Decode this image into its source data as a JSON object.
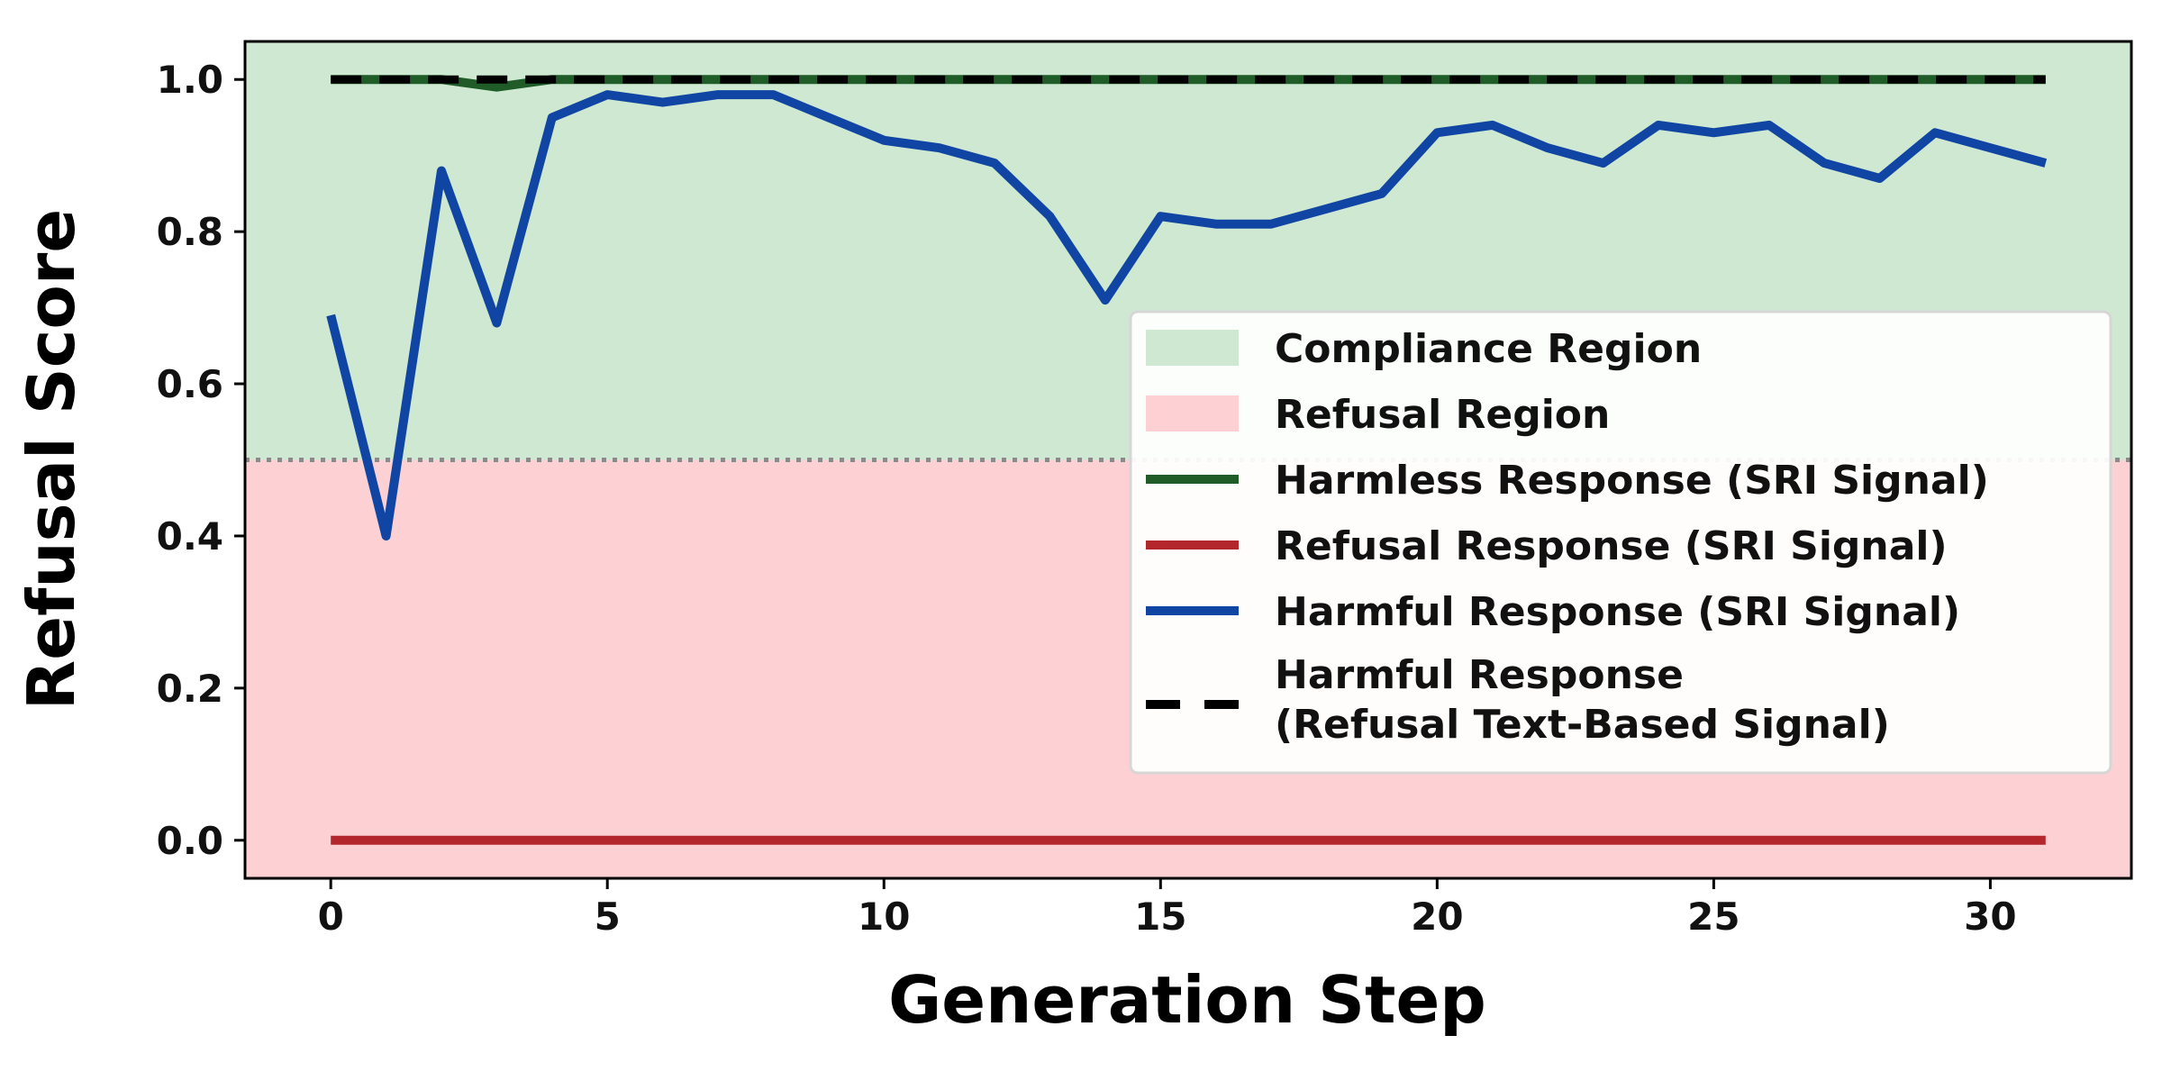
{
  "chart_data": {
    "type": "line",
    "xlabel": "Generation Step",
    "ylabel": "Refusal Score",
    "xlim": [
      -1.55,
      32.55
    ],
    "ylim": [
      -0.05,
      1.05
    ],
    "xticks": [
      0,
      5,
      10,
      15,
      20,
      25,
      30
    ],
    "xtick_labels": [
      "0",
      "5",
      "10",
      "15",
      "20",
      "25",
      "30"
    ],
    "yticks": [
      0.0,
      0.2,
      0.4,
      0.6,
      0.8,
      1.0
    ],
    "ytick_labels": [
      "0.0",
      "0.2",
      "0.4",
      "0.6",
      "0.8",
      "1.0"
    ],
    "threshold": 0.5,
    "grid": false,
    "legend_position": "center-right",
    "regions": [
      {
        "name": "Compliance Region",
        "from": 0.5,
        "to": 1.05,
        "color": "#cfe8d1"
      },
      {
        "name": "Refusal Region",
        "from": -0.05,
        "to": 0.5,
        "color": "#fdd0d4"
      }
    ],
    "x": [
      0,
      1,
      2,
      3,
      4,
      5,
      6,
      7,
      8,
      9,
      10,
      11,
      12,
      13,
      14,
      15,
      16,
      17,
      18,
      19,
      20,
      21,
      22,
      23,
      24,
      25,
      26,
      27,
      28,
      29,
      30,
      31
    ],
    "series": [
      {
        "name": "Harmless Response (SRI Signal)",
        "color": "#1f5c28",
        "style": "solid",
        "values": [
          1.0,
          1.0,
          1.0,
          0.99,
          1.0,
          1.0,
          1.0,
          1.0,
          1.0,
          1.0,
          1.0,
          1.0,
          1.0,
          1.0,
          1.0,
          1.0,
          1.0,
          1.0,
          1.0,
          1.0,
          1.0,
          1.0,
          1.0,
          1.0,
          1.0,
          1.0,
          1.0,
          1.0,
          1.0,
          1.0,
          1.0,
          1.0
        ]
      },
      {
        "name": "Refusal Response (SRI Signal)",
        "color": "#b3262b",
        "style": "solid",
        "values": [
          0,
          0,
          0,
          0,
          0,
          0,
          0,
          0,
          0,
          0,
          0,
          0,
          0,
          0,
          0,
          0,
          0,
          0,
          0,
          0,
          0,
          0,
          0,
          0,
          0,
          0,
          0,
          0,
          0,
          0,
          0,
          0
        ]
      },
      {
        "name": "Harmful Response (SRI Signal)",
        "color": "#1045a3",
        "style": "solid",
        "values": [
          0.69,
          0.4,
          0.88,
          0.68,
          0.95,
          0.98,
          0.97,
          0.98,
          0.98,
          0.95,
          0.92,
          0.91,
          0.89,
          0.82,
          0.71,
          0.82,
          0.81,
          0.81,
          0.83,
          0.85,
          0.93,
          0.94,
          0.91,
          0.89,
          0.94,
          0.93,
          0.94,
          0.89,
          0.87,
          0.93,
          0.91,
          0.89
        ]
      },
      {
        "name": "Harmful Response\n(Refusal Text-Based Signal)",
        "color": "#000000",
        "style": "dashed",
        "values": [
          1,
          1,
          1,
          1,
          1,
          1,
          1,
          1,
          1,
          1,
          1,
          1,
          1,
          1,
          1,
          1,
          1,
          1,
          1,
          1,
          1,
          1,
          1,
          1,
          1,
          1,
          1,
          1,
          1,
          1,
          1,
          1
        ]
      }
    ],
    "legend": [
      {
        "label": "Compliance Region",
        "kind": "patch",
        "color": "#cfe8d1"
      },
      {
        "label": "Refusal Region",
        "kind": "patch",
        "color": "#fdd0d4"
      },
      {
        "label": "Harmless Response (SRI Signal)",
        "kind": "line",
        "color": "#1f5c28",
        "style": "solid"
      },
      {
        "label": "Refusal Response (SRI Signal)",
        "kind": "line",
        "color": "#b3262b",
        "style": "solid"
      },
      {
        "label": "Harmful Response (SRI Signal)",
        "kind": "line",
        "color": "#1045a3",
        "style": "solid"
      },
      {
        "label": "Harmful Response\n(Refusal Text-Based Signal)",
        "kind": "line",
        "color": "#000000",
        "style": "dashed"
      }
    ]
  }
}
